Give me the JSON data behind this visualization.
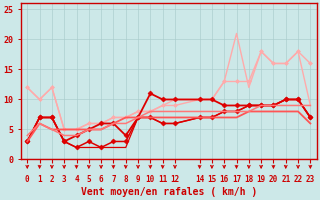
{
  "bg_color": "#cce8e8",
  "grid_color": "#aacccc",
  "xlabel": "Vent moyen/en rafales ( km/h )",
  "xlabel_color": "#cc0000",
  "xlabel_fontsize": 7,
  "xtick_values": [
    0,
    1,
    2,
    3,
    4,
    5,
    6,
    7,
    8,
    9,
    10,
    11,
    12,
    14,
    15,
    16,
    17,
    18,
    19,
    20,
    21,
    22,
    23
  ],
  "xtick_labels": [
    "0",
    "1",
    "2",
    "3",
    "4",
    "5",
    "6",
    "7",
    "8",
    "9",
    "10",
    "11",
    "12",
    "14",
    "15",
    "16",
    "17",
    "18",
    "19",
    "20",
    "21",
    "22",
    "23"
  ],
  "ylim": [
    0,
    26
  ],
  "yticks": [
    0,
    5,
    10,
    15,
    20,
    25
  ],
  "lines": [
    {
      "x": [
        0,
        1,
        2,
        3,
        4,
        5,
        6,
        7,
        8,
        9,
        10,
        11,
        12,
        14,
        15,
        16,
        17,
        18,
        19,
        20,
        21,
        22,
        23
      ],
      "y": [
        12,
        10,
        12,
        5,
        5,
        6,
        6,
        7,
        7,
        8,
        8,
        9,
        10,
        10,
        10,
        13,
        21,
        12,
        18,
        16,
        16,
        18,
        9
      ],
      "color": "#ffaaaa",
      "lw": 1.0,
      "marker": null,
      "ms": 0
    },
    {
      "x": [
        0,
        1,
        2,
        3,
        4,
        5,
        6,
        7,
        8,
        9,
        10,
        11,
        12,
        14,
        15,
        16,
        17,
        18,
        19,
        20,
        21,
        22,
        23
      ],
      "y": [
        12,
        10,
        12,
        5,
        5,
        6,
        6,
        7,
        7,
        8,
        8,
        9,
        9,
        10,
        10,
        13,
        13,
        13,
        18,
        16,
        16,
        18,
        16
      ],
      "color": "#ffaaaa",
      "lw": 1.0,
      "marker": "D",
      "ms": 2
    },
    {
      "x": [
        0,
        1,
        2,
        3,
        4,
        5,
        6,
        7,
        8,
        9,
        10,
        11,
        12,
        14,
        15,
        16,
        17,
        18,
        19,
        20,
        21,
        22,
        23
      ],
      "y": [
        3,
        7,
        7,
        3,
        4,
        5,
        6,
        6,
        4,
        7,
        11,
        10,
        10,
        10,
        10,
        9,
        9,
        9,
        9,
        9,
        10,
        10,
        7
      ],
      "color": "#dd0000",
      "lw": 1.3,
      "marker": "D",
      "ms": 2.5
    },
    {
      "x": [
        0,
        1,
        2,
        3,
        4,
        5,
        6,
        7,
        8,
        9,
        10,
        11,
        12,
        14,
        15,
        16,
        17,
        18,
        19,
        20,
        21,
        22,
        23
      ],
      "y": [
        3,
        7,
        7,
        3,
        2,
        3,
        2,
        3,
        3,
        7,
        7,
        6,
        6,
        7,
        7,
        8,
        8,
        9,
        9,
        9,
        10,
        10,
        7
      ],
      "color": "#dd0000",
      "lw": 1.1,
      "marker": "D",
      "ms": 2.5
    },
    {
      "x": [
        0,
        1,
        2,
        3,
        4,
        5,
        6,
        7,
        8,
        9,
        10,
        11,
        12,
        14,
        15,
        16,
        17,
        18,
        19,
        20,
        21,
        22,
        23
      ],
      "y": [
        3,
        7,
        7,
        3,
        2,
        2,
        2,
        2,
        2,
        7,
        7,
        6,
        6,
        7,
        7,
        8,
        8,
        9,
        9,
        9,
        10,
        10,
        7
      ],
      "color": "#dd0000",
      "lw": 0.9,
      "marker": null,
      "ms": 0
    },
    {
      "x": [
        0,
        1,
        2,
        3,
        4,
        5,
        6,
        7,
        8,
        9,
        10,
        11,
        12,
        14,
        15,
        16,
        17,
        18,
        19,
        20,
        21,
        22,
        23
      ],
      "y": [
        3,
        6,
        5,
        5,
        5,
        5,
        5,
        6,
        7,
        7,
        7,
        7,
        7,
        7,
        7,
        7,
        7,
        8,
        8,
        8,
        8,
        8,
        6
      ],
      "color": "#ff5555",
      "lw": 1.3,
      "marker": null,
      "ms": 0
    },
    {
      "x": [
        0,
        1,
        2,
        3,
        4,
        5,
        6,
        7,
        8,
        9,
        10,
        11,
        12,
        14,
        15,
        16,
        17,
        18,
        19,
        20,
        21,
        22,
        23
      ],
      "y": [
        4,
        6,
        5,
        4,
        4,
        5,
        5,
        6,
        6,
        7,
        8,
        8,
        8,
        8,
        8,
        8,
        8,
        8,
        9,
        9,
        9,
        9,
        9
      ],
      "color": "#ff7777",
      "lw": 1.1,
      "marker": null,
      "ms": 0
    }
  ]
}
